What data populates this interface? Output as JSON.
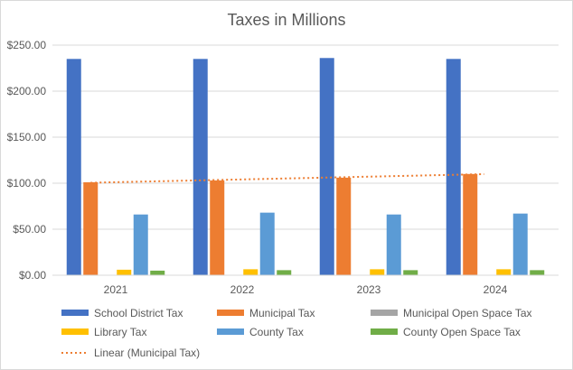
{
  "chart_data": {
    "type": "bar",
    "title": "Taxes in Millions",
    "categories": [
      "2021",
      "2022",
      "2023",
      "2024"
    ],
    "y_ticks": [
      "$0.00",
      "$50.00",
      "$100.00",
      "$150.00",
      "$200.00",
      "$250.00"
    ],
    "ylim": [
      0,
      250
    ],
    "grid": "horizontal",
    "legend_position": "bottom",
    "series": [
      {
        "name": "School District Tax",
        "color": "#4472C4",
        "values": [
          235,
          235,
          236,
          235
        ]
      },
      {
        "name": "Municipal Tax",
        "color": "#ED7D31",
        "values": [
          101,
          103,
          106,
          110
        ]
      },
      {
        "name": "Municipal Open Space Tax",
        "color": "#A5A5A5",
        "values": [
          0,
          0,
          0,
          0
        ]
      },
      {
        "name": "Library Tax",
        "color": "#FFC000",
        "values": [
          6,
          6.5,
          6.5,
          6.5
        ]
      },
      {
        "name": "County Tax",
        "color": "#5B9BD5",
        "values": [
          66,
          68,
          66,
          67
        ]
      },
      {
        "name": "County Open Space Tax",
        "color": "#70AD47",
        "values": [
          5,
          5.5,
          5.5,
          5.5
        ]
      }
    ],
    "trendline": {
      "name": "Linear (Municipal Tax)",
      "series": "Municipal Tax",
      "type": "linear",
      "color": "#ED7D31"
    }
  }
}
